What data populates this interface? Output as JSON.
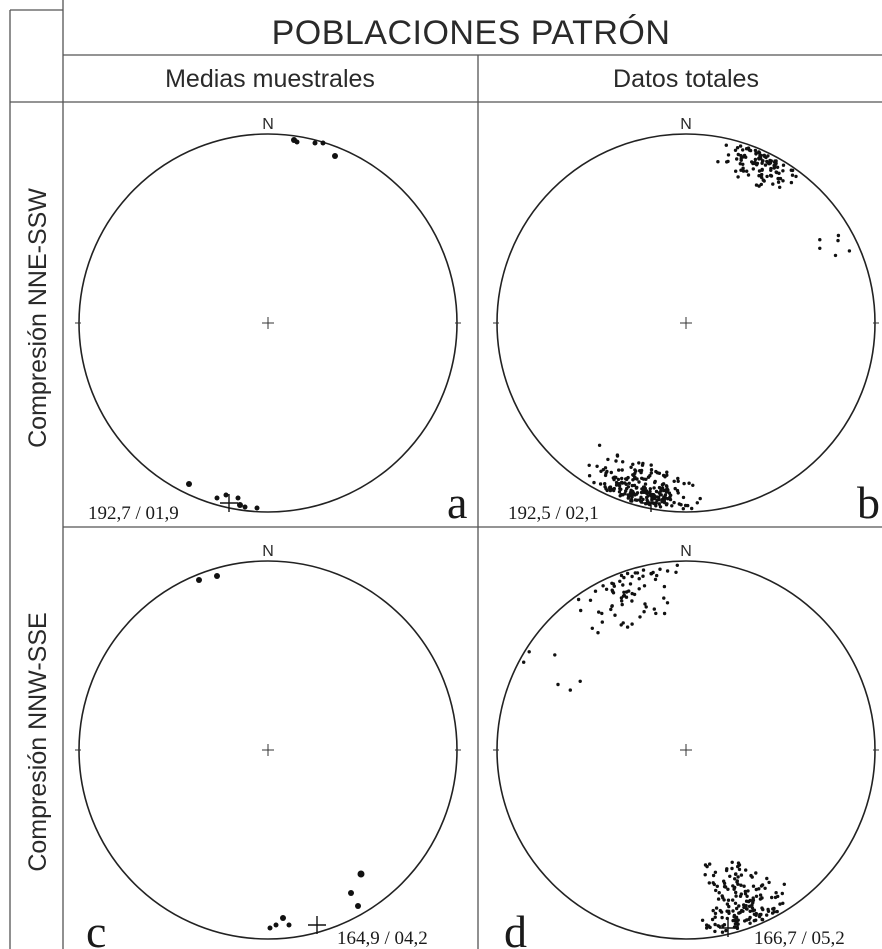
{
  "header": {
    "title": "POBLACIONES PATRÓN",
    "columns": [
      "Medias muestrales",
      "Datos totales"
    ]
  },
  "rows": [
    "Compresión NNE-SSW",
    "Compresión NNW-SSE"
  ],
  "panels": [
    {
      "letter": "a",
      "north": "N",
      "coords": "192,7 / 01,9"
    },
    {
      "letter": "b",
      "north": "N",
      "coords": "192,5 / 02,1"
    },
    {
      "letter": "c",
      "north": "N",
      "coords": "164,9 / 04,2"
    },
    {
      "letter": "d",
      "north": "N",
      "coords": "166,7 / 05,2"
    }
  ],
  "colors": {
    "ink": "#111111",
    "grid": "#555555",
    "background": "#ffffff"
  }
}
